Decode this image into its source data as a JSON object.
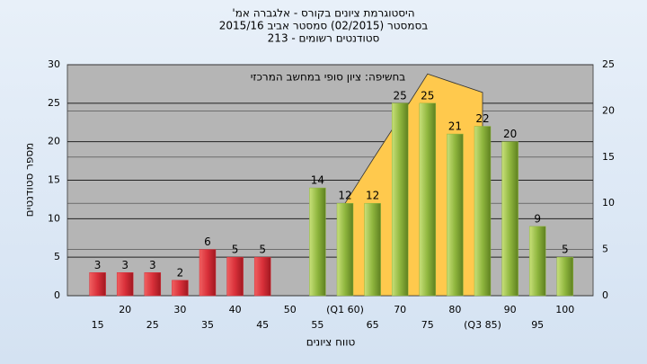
{
  "chart_data": {
    "type": "bar",
    "title": "היסטוגרמת ציונים בקורס - אלגברה אמ'",
    "subtitle": [
      "בסמסטר (02/2015) סמסטר אביב 2015/16",
      "סטודנטים רשומים - 213"
    ],
    "annotation": "בחשיפה: ציון סופי במחשב המרכזי",
    "x_label": "טווח ציונים",
    "y_label": "מספר סטודנטים",
    "categories": [
      "15",
      "20",
      "25",
      "30",
      "35",
      "40",
      "45",
      "50",
      "55",
      "(Q1 60)",
      "65",
      "70",
      "75",
      "80",
      "(Q3 85)",
      "90",
      "95",
      "100"
    ],
    "series": [
      {
        "values": [
          3,
          3,
          3,
          2,
          6,
          5,
          5,
          0,
          14,
          12,
          12,
          25,
          25,
          21,
          22,
          20,
          9,
          5
        ],
        "value_labels": [
          "3",
          "3",
          "3",
          "2",
          "6",
          "5",
          "5",
          null,
          "14",
          "12",
          "12",
          "25",
          "25",
          "21",
          "22",
          "20",
          "9",
          "5"
        ],
        "colors": [
          "#d9303a",
          "#d9303a",
          "#d9303a",
          "#d9303a",
          "#d9303a",
          "#d9303a",
          "#d9303a",
          "#d9303a",
          "#8fb63e",
          "#8fb63e",
          "#8fb63e",
          "#8fb63e",
          "#8fb63e",
          "#8fb63e",
          "#8fb63e",
          "#8fb63e",
          "#8fb63e",
          "#8fb63e"
        ]
      },
      {
        "type": "area",
        "axis": "y2",
        "color": "#ffc94d",
        "values": [
          null,
          null,
          null,
          null,
          null,
          null,
          null,
          null,
          null,
          10,
          14.7,
          19.3,
          24,
          23,
          22,
          null,
          null,
          null
        ]
      }
    ],
    "ylim": [
      0,
      30
    ],
    "yticks": [
      0,
      5,
      10,
      15,
      20,
      25,
      30
    ],
    "y2lim": [
      0,
      25
    ],
    "y2ticks": [
      0,
      5,
      10,
      15,
      20,
      25
    ],
    "grid": true
  }
}
